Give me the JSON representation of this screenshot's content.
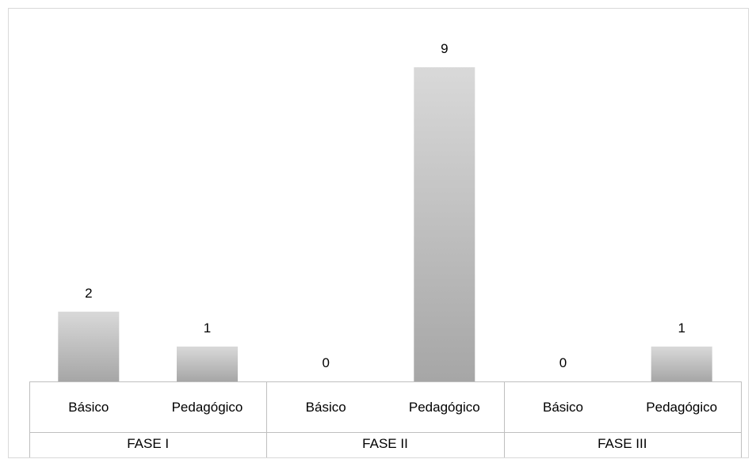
{
  "chart_data": {
    "type": "bar",
    "groups": [
      {
        "name": "FASE I",
        "categories": [
          "Básico",
          "Pedagógico"
        ],
        "values": [
          2,
          1
        ]
      },
      {
        "name": "FASE II",
        "categories": [
          "Básico",
          "Pedagógico"
        ],
        "values": [
          0,
          9
        ]
      },
      {
        "name": "FASE III",
        "categories": [
          "Básico",
          "Pedagógico"
        ],
        "values": [
          0,
          1
        ]
      }
    ],
    "title": "",
    "xlabel": "",
    "ylabel": "",
    "ylim": [
      0,
      9
    ],
    "grid": false,
    "legend": "none",
    "bar_color_light": "#d9d9d9",
    "bar_color_dark": "#a6a6a6",
    "axis_color": "#bfbfbf"
  }
}
